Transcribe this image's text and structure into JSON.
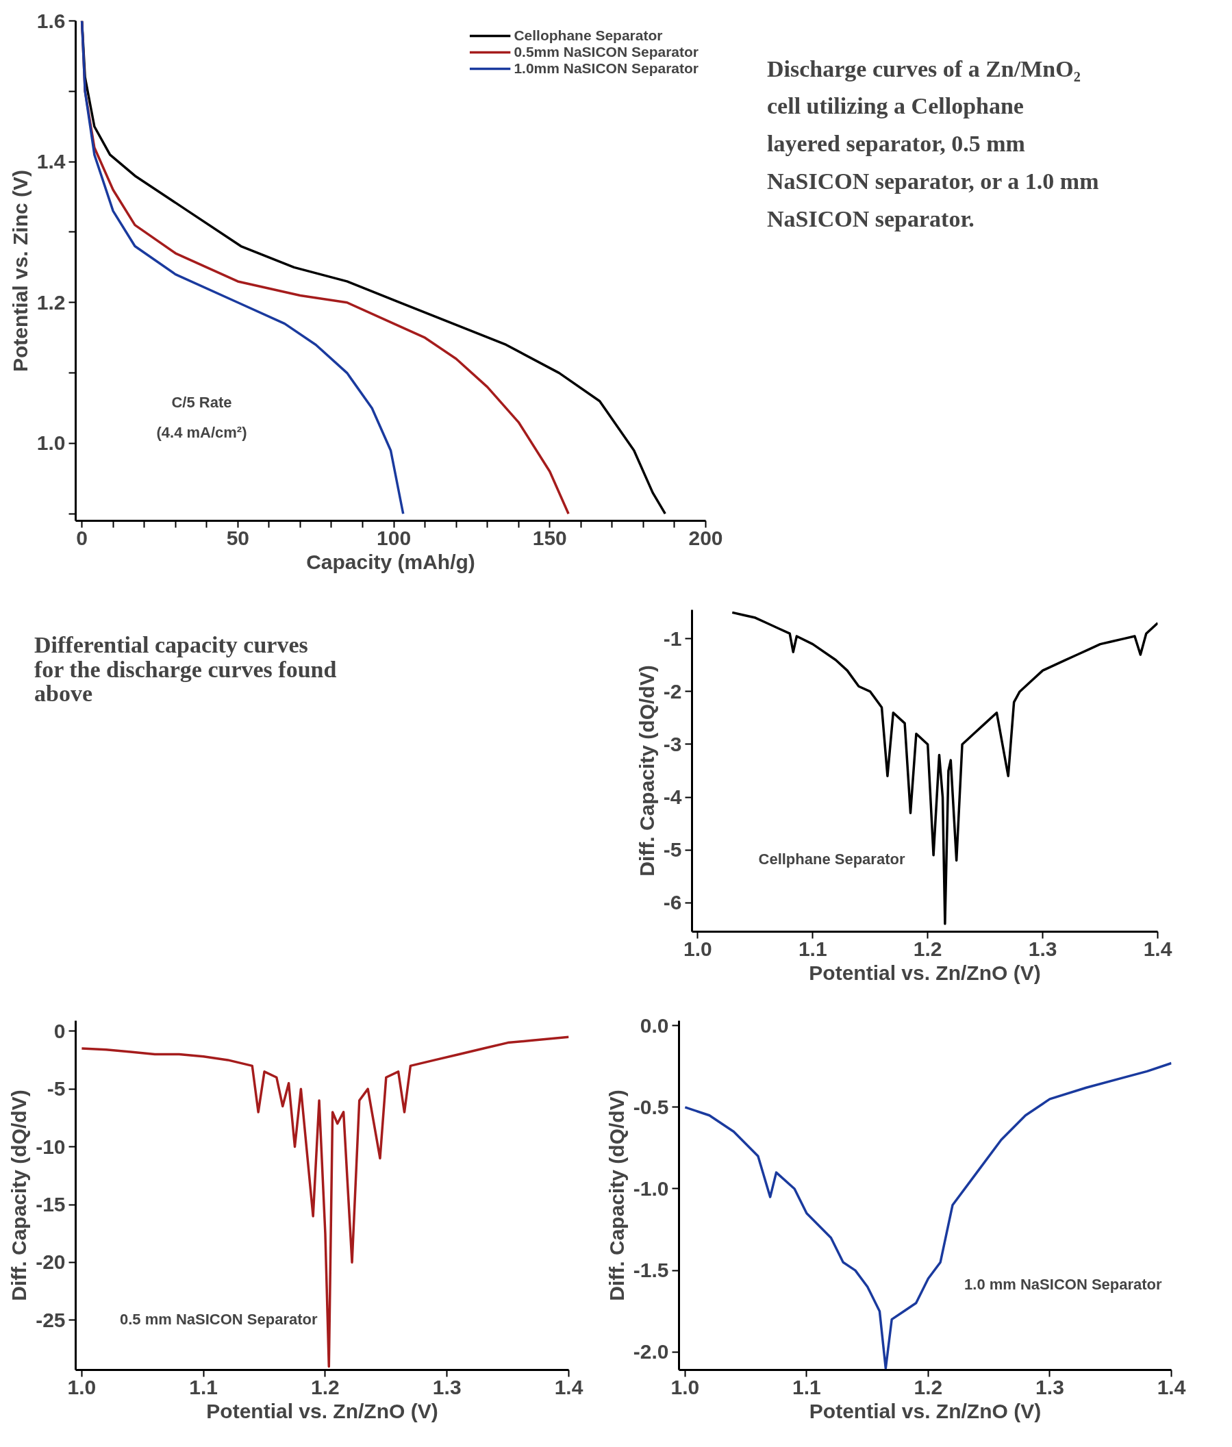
{
  "chart_data": [
    {
      "type": "line",
      "xlabel": "Capacity (mAh/g)",
      "ylabel": "Potential vs. Zinc (V)",
      "xlim": [
        -2,
        200
      ],
      "ylim": [
        0.89,
        1.6
      ],
      "xticks": [
        0,
        {
          "value": 10,
          "label": null
        },
        {
          "value": 20,
          "label": null
        },
        {
          "value": 30,
          "label": null
        },
        {
          "value": 40,
          "label": null
        },
        50,
        {
          "value": 60,
          "label": null
        },
        {
          "value": 70,
          "label": null
        },
        {
          "value": 80,
          "label": null
        },
        {
          "value": 90,
          "label": null
        },
        100,
        {
          "value": 110,
          "label": null
        },
        {
          "value": 120,
          "label": null
        },
        {
          "value": 130,
          "label": null
        },
        {
          "value": 140,
          "label": null
        },
        150,
        {
          "value": 160,
          "label": null
        },
        {
          "value": 170,
          "label": null
        },
        {
          "value": 180,
          "label": null
        },
        {
          "value": 190,
          "label": null
        },
        200
      ],
      "yticks": [
        {
          "value": 0.9,
          "label": null
        },
        {
          "value": 1.0,
          "label": "1.0"
        },
        {
          "value": 1.1,
          "label": null
        },
        {
          "value": 1.2,
          "label": "1.2"
        },
        {
          "value": 1.3,
          "label": null
        },
        {
          "value": 1.4,
          "label": "1.4"
        },
        {
          "value": 1.5,
          "label": null
        },
        {
          "value": 1.6,
          "label": "1.6"
        }
      ],
      "grid": false,
      "legend": "top right",
      "line_style": "solid",
      "marker": "none",
      "annotations": [
        "C/5 Rate",
        "(4.4 mA/cm²)"
      ],
      "series": [
        {
          "name": "Cellophane Separator",
          "color": "#000000",
          "x": [
            0,
            1,
            4,
            9,
            17,
            34,
            51,
            68,
            85,
            102,
            119,
            136,
            153,
            166,
            177,
            183,
            187
          ],
          "values": [
            1.6,
            1.52,
            1.45,
            1.41,
            1.38,
            1.33,
            1.28,
            1.25,
            1.23,
            1.2,
            1.17,
            1.14,
            1.1,
            1.06,
            0.99,
            0.93,
            0.9
          ]
        },
        {
          "name": "0.5mm NaSICON Separator",
          "color": "#a51c1c",
          "x": [
            0,
            1,
            4,
            10,
            17,
            30,
            50,
            70,
            85,
            100,
            110,
            120,
            130,
            140,
            150,
            156
          ],
          "values": [
            1.6,
            1.5,
            1.42,
            1.36,
            1.31,
            1.27,
            1.23,
            1.21,
            1.2,
            1.17,
            1.15,
            1.12,
            1.08,
            1.03,
            0.96,
            0.9
          ]
        },
        {
          "name": "1.0mm NaSICON Separator",
          "color": "#1a3a9e",
          "x": [
            0,
            1,
            4,
            10,
            17,
            30,
            50,
            65,
            75,
            85,
            93,
            99,
            103
          ],
          "values": [
            1.6,
            1.5,
            1.41,
            1.33,
            1.28,
            1.24,
            1.2,
            1.17,
            1.14,
            1.1,
            1.05,
            0.99,
            0.9
          ]
        }
      ]
    },
    {
      "type": "other",
      "annotations": [
        "Discharge curves of a Zn/MnO₂ cell utilizing a Cellophane layered separator, 0.5 mm NaSICON separator, or a 1.0 mm NaSICON separator."
      ]
    },
    {
      "type": "other",
      "annotations": [
        "Differential capacity curves for the discharge curves found above"
      ]
    },
    {
      "type": "line",
      "xlabel": "Potential vs. Zn/ZnO (V)",
      "ylabel": "Diff. Capacity (dQ/dV)",
      "xlim": [
        0.995,
        1.4
      ],
      "ylim": [
        -6.55,
        -0.45
      ],
      "xticks": [
        {
          "value": 1.0,
          "label": "1.0"
        },
        {
          "value": 1.1,
          "label": "1.1"
        },
        {
          "value": 1.2,
          "label": "1.2"
        },
        {
          "value": 1.3,
          "label": "1.3"
        },
        {
          "value": 1.4,
          "label": "1.4"
        }
      ],
      "yticks": [
        -1,
        -2,
        -3,
        -4,
        -5,
        -6
      ],
      "grid": false,
      "line_style": "solid",
      "marker": "none",
      "annotations": [
        "Cellphane Separator"
      ],
      "series": [
        {
          "color": "#000000",
          "x": [
            1.03,
            1.04,
            1.05,
            1.06,
            1.07,
            1.08,
            1.083,
            1.086,
            1.1,
            1.12,
            1.13,
            1.14,
            1.15,
            1.16,
            1.165,
            1.17,
            1.18,
            1.185,
            1.19,
            1.2,
            1.205,
            1.21,
            1.213,
            1.215,
            1.218,
            1.22,
            1.225,
            1.23,
            1.24,
            1.25,
            1.26,
            1.27,
            1.275,
            1.28,
            1.29,
            1.3,
            1.31,
            1.32,
            1.33,
            1.34,
            1.35,
            1.36,
            1.37,
            1.38,
            1.385,
            1.39,
            1.4
          ],
          "values": [
            -0.5,
            -0.55,
            -0.6,
            -0.7,
            -0.8,
            -0.9,
            -1.25,
            -0.95,
            -1.1,
            -1.4,
            -1.6,
            -1.9,
            -2.0,
            -2.3,
            -3.6,
            -2.4,
            -2.6,
            -4.3,
            -2.8,
            -3.0,
            -5.1,
            -3.2,
            -4.0,
            -6.4,
            -3.5,
            -3.3,
            -5.2,
            -3.0,
            -2.8,
            -2.6,
            -2.4,
            -3.6,
            -2.2,
            -2.0,
            -1.8,
            -1.6,
            -1.5,
            -1.4,
            -1.3,
            -1.2,
            -1.1,
            -1.05,
            -1.0,
            -0.95,
            -1.3,
            -0.9,
            -0.7
          ]
        }
      ]
    },
    {
      "type": "line",
      "xlabel": "Potential vs. Zn/ZnO (V)",
      "ylabel": "Diff. Capacity (dQ/dV)",
      "xlim": [
        0.995,
        1.4
      ],
      "ylim": [
        -29.3,
        0.9
      ],
      "xticks": [
        {
          "value": 1.0,
          "label": "1.0"
        },
        {
          "value": 1.1,
          "label": "1.1"
        },
        {
          "value": 1.2,
          "label": "1.2"
        },
        {
          "value": 1.3,
          "label": "1.3"
        },
        {
          "value": 1.4,
          "label": "1.4"
        }
      ],
      "yticks": [
        0,
        -5,
        -10,
        -15,
        -20,
        -25
      ],
      "grid": false,
      "line_style": "solid",
      "marker": "none",
      "annotations": [
        "0.5 mm NaSICON Separator"
      ],
      "series": [
        {
          "color": "#a51c1c",
          "x": [
            1.0,
            1.02,
            1.04,
            1.06,
            1.08,
            1.1,
            1.12,
            1.14,
            1.145,
            1.15,
            1.16,
            1.165,
            1.17,
            1.175,
            1.18,
            1.19,
            1.195,
            1.2,
            1.203,
            1.206,
            1.21,
            1.215,
            1.222,
            1.228,
            1.235,
            1.245,
            1.25,
            1.26,
            1.265,
            1.27,
            1.29,
            1.31,
            1.33,
            1.35,
            1.37,
            1.4
          ],
          "values": [
            -1.5,
            -1.6,
            -1.8,
            -2.0,
            -2.0,
            -2.2,
            -2.5,
            -3.0,
            -7.0,
            -3.5,
            -4.0,
            -6.5,
            -4.5,
            -10.0,
            -5.0,
            -16.0,
            -6.0,
            -17.5,
            -29.0,
            -7.0,
            -8.0,
            -7.0,
            -20.0,
            -6.0,
            -5.0,
            -11.0,
            -4.0,
            -3.5,
            -7.0,
            -3.0,
            -2.5,
            -2.0,
            -1.5,
            -1.0,
            -0.8,
            -0.5
          ]
        }
      ]
    },
    {
      "type": "line",
      "xlabel": "Potential vs. Zn/ZnO (V)",
      "ylabel": "Diff. Capacity (dQ/dV)",
      "xlim": [
        0.995,
        1.4
      ],
      "ylim": [
        -2.11,
        0.03
      ],
      "xticks": [
        {
          "value": 1.0,
          "label": "1.0"
        },
        {
          "value": 1.1,
          "label": "1.1"
        },
        {
          "value": 1.2,
          "label": "1.2"
        },
        {
          "value": 1.3,
          "label": "1.3"
        },
        {
          "value": 1.4,
          "label": "1.4"
        }
      ],
      "yticks": [
        {
          "value": 0.0,
          "label": "0.0"
        },
        {
          "value": -0.5,
          "label": "-0.5"
        },
        {
          "value": -1.0,
          "label": "-1.0"
        },
        {
          "value": -1.5,
          "label": "-1.5"
        },
        {
          "value": -2.0,
          "label": "-2.0"
        }
      ],
      "grid": false,
      "line_style": "solid",
      "marker": "none",
      "annotations": [
        "1.0 mm NaSICON Separator"
      ],
      "series": [
        {
          "color": "#1a3a9e",
          "x": [
            1.0,
            1.02,
            1.04,
            1.06,
            1.07,
            1.075,
            1.09,
            1.1,
            1.12,
            1.13,
            1.14,
            1.15,
            1.16,
            1.165,
            1.17,
            1.18,
            1.19,
            1.2,
            1.21,
            1.22,
            1.24,
            1.26,
            1.28,
            1.3,
            1.33,
            1.36,
            1.38,
            1.4
          ],
          "values": [
            -0.5,
            -0.55,
            -0.65,
            -0.8,
            -1.05,
            -0.9,
            -1.0,
            -1.15,
            -1.3,
            -1.45,
            -1.5,
            -1.6,
            -1.75,
            -2.1,
            -1.8,
            -1.75,
            -1.7,
            -1.55,
            -1.45,
            -1.1,
            -0.9,
            -0.7,
            -0.55,
            -0.45,
            -0.38,
            -0.32,
            -0.28,
            -0.23
          ]
        }
      ]
    }
  ]
}
